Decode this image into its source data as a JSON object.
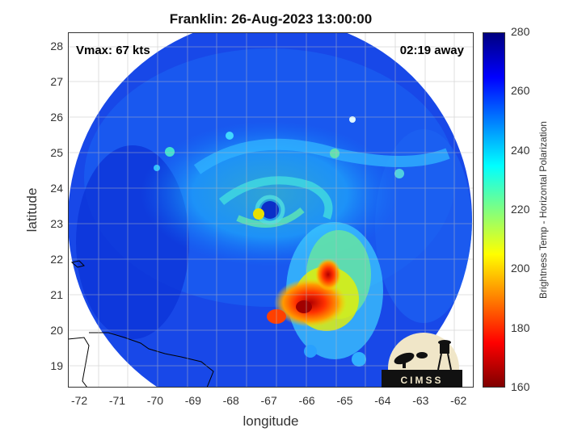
{
  "title": "Franklin: 26-Aug-2023 13:00:00",
  "vmax_text": "Vmax: 67 kts",
  "away_text": "02:19 away",
  "xlabel": "longitude",
  "ylabel": "latitude",
  "colorbar": {
    "label": "Brightness Temp - Horizontal Polarization",
    "ticks": [
      "280",
      "260",
      "240",
      "220",
      "200",
      "180",
      "160"
    ],
    "range": [
      160,
      280
    ],
    "colors": [
      "#7f0000",
      "#ff0000",
      "#ff8000",
      "#ffff00",
      "#80ff80",
      "#00ffff",
      "#0080ff",
      "#0000ff",
      "#00007f"
    ]
  },
  "axes": {
    "lon_ticks": [
      "-72",
      "-71",
      "-70",
      "-69",
      "-68",
      "-67",
      "-66",
      "-65",
      "-64",
      "-63",
      "-62"
    ],
    "lat_ticks": [
      "28",
      "27",
      "26",
      "25",
      "24",
      "23",
      "22",
      "21",
      "20",
      "19"
    ],
    "lon_range": [
      -72.3,
      -61.6
    ],
    "lat_range": [
      18.4,
      28.4
    ]
  },
  "logo_text": "CIMSS"
}
